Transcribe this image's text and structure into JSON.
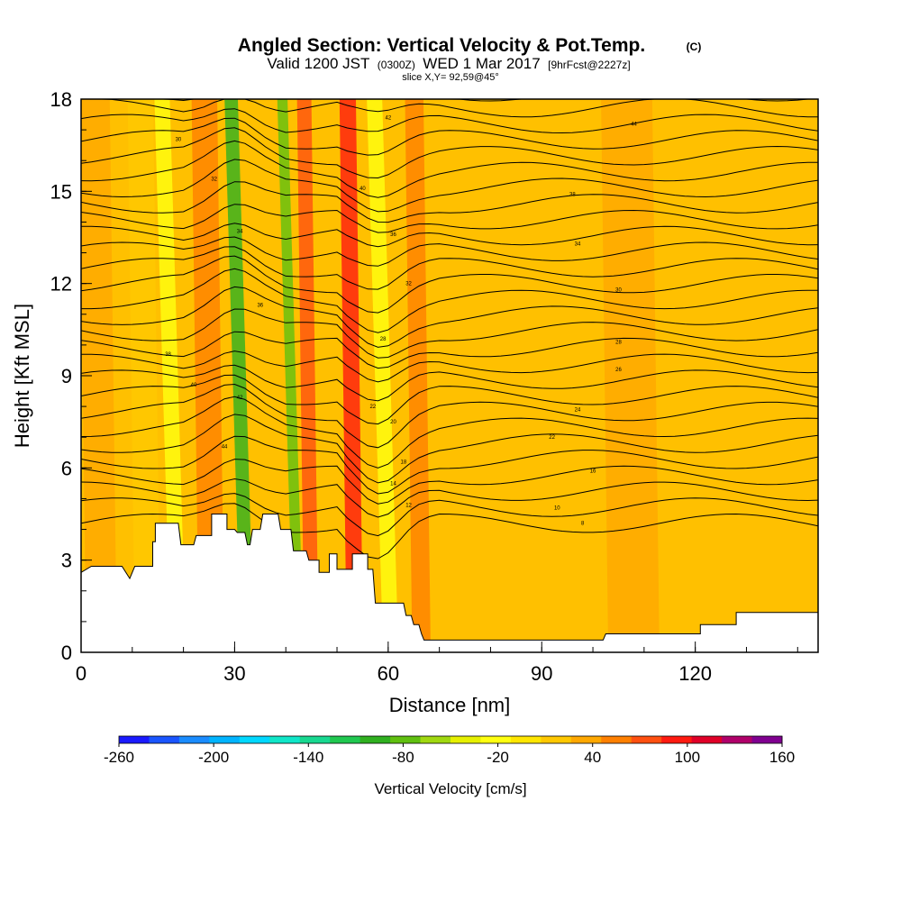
{
  "chart_data": {
    "type": "heatmap",
    "title": "Angled Section: Vertical Velocity & Pot.Temp.",
    "title_suffix": "(C)",
    "subtitle": {
      "valid": "Valid 1200 JST",
      "utc": "(0300Z)",
      "date": "WED 1 Mar 2017",
      "forecast": "[9hrFcst@2227z]"
    },
    "slice_label": "slice X,Y= 92,59@45°",
    "xlabel": "Distance [nm]",
    "ylabel": "Height [Kft MSL]",
    "xlim": [
      0,
      144
    ],
    "ylim": [
      0,
      18
    ],
    "x_ticks": [
      0,
      30,
      60,
      90,
      120
    ],
    "y_ticks": [
      0,
      3,
      6,
      9,
      12,
      15,
      18
    ],
    "colorbar": {
      "label": "Vertical Velocity [cm/s]",
      "ticks": [
        -260,
        -200,
        -140,
        -80,
        -20,
        40,
        100,
        160
      ],
      "bins": [
        -260,
        -240,
        -220,
        -200,
        -180,
        -160,
        -140,
        -120,
        -100,
        -80,
        -60,
        -40,
        -20,
        0,
        20,
        40,
        60,
        80,
        100,
        120,
        140,
        160
      ],
      "colors": [
        "#1a1aff",
        "#1a55ff",
        "#1a8cff",
        "#00b4ff",
        "#00d8ff",
        "#10e6c8",
        "#18d890",
        "#20c850",
        "#30b020",
        "#60c010",
        "#a0d810",
        "#e6f000",
        "#ffff10",
        "#ffe600",
        "#ffc800",
        "#ffa800",
        "#ff8000",
        "#ff5010",
        "#ff1a10",
        "#e00028",
        "#b0006a",
        "#800090"
      ]
    },
    "updraft_bands_nm": [
      {
        "x": 4,
        "w": 3,
        "value": 40
      },
      {
        "x": 13,
        "w": 2.5,
        "value": 20
      },
      {
        "x": 25.5,
        "w": 2.5,
        "value": 60
      },
      {
        "x": 45,
        "w": 1.4,
        "value": 80
      },
      {
        "x": 53.5,
        "w": 1.6,
        "value": 100
      },
      {
        "x": 66.5,
        "w": 1.8,
        "value": 60
      },
      {
        "x": 108,
        "w": 5,
        "value": 40
      }
    ],
    "downdraft_bands_nm": [
      {
        "x": 32.5,
        "w": 1.3,
        "value": -100
      },
      {
        "x": 42.5,
        "w": 1.0,
        "value": -80
      },
      {
        "x": 19,
        "w": 1.5,
        "value": -20
      },
      {
        "x": 60.5,
        "w": 1.5,
        "value": -20
      }
    ],
    "terrain_height_kft": [
      [
        0,
        2.6
      ],
      [
        2,
        2.8
      ],
      [
        8,
        2.8
      ],
      [
        9.5,
        2.4
      ],
      [
        10.5,
        2.8
      ],
      [
        14,
        2.8
      ],
      [
        14,
        3.6
      ],
      [
        14.5,
        3.6
      ],
      [
        14.5,
        4.2
      ],
      [
        19,
        4.2
      ],
      [
        19.5,
        3.5
      ],
      [
        22,
        3.5
      ],
      [
        22.5,
        3.8
      ],
      [
        25.5,
        3.8
      ],
      [
        25.5,
        4.5
      ],
      [
        28.5,
        4.5
      ],
      [
        28.5,
        4.0
      ],
      [
        30,
        4.0
      ],
      [
        30.5,
        3.9
      ],
      [
        32,
        3.9
      ],
      [
        32.5,
        3.5
      ],
      [
        33,
        3.5
      ],
      [
        33.5,
        4.0
      ],
      [
        35,
        4.0
      ],
      [
        35.5,
        4.5
      ],
      [
        38.5,
        4.5
      ],
      [
        39,
        4.0
      ],
      [
        41,
        4.0
      ],
      [
        41.5,
        3.3
      ],
      [
        44,
        3.3
      ],
      [
        44.5,
        3.0
      ],
      [
        46.5,
        3.0
      ],
      [
        46.5,
        2.6
      ],
      [
        48.5,
        2.6
      ],
      [
        48.5,
        3.2
      ],
      [
        50,
        3.2
      ],
      [
        50,
        2.7
      ],
      [
        53,
        2.7
      ],
      [
        53,
        3.2
      ],
      [
        56,
        3.2
      ],
      [
        56,
        2.7
      ],
      [
        57,
        2.7
      ],
      [
        57.5,
        1.6
      ],
      [
        63,
        1.6
      ],
      [
        63.5,
        1.2
      ],
      [
        64.5,
        1.2
      ],
      [
        65,
        0.9
      ],
      [
        66,
        0.9
      ],
      [
        66.5,
        0.6
      ],
      [
        67,
        0.4
      ],
      [
        102,
        0.4
      ],
      [
        102.5,
        0.6
      ],
      [
        121,
        0.6
      ],
      [
        121,
        0.9
      ],
      [
        128,
        0.9
      ],
      [
        128,
        1.3
      ],
      [
        144,
        1.3
      ]
    ],
    "theta_contours": {
      "units": "C",
      "labels": [
        {
          "text": "8",
          "x": 98,
          "y": 4.2
        },
        {
          "text": "10",
          "x": 93,
          "y": 4.7
        },
        {
          "text": "12",
          "x": 64,
          "y": 4.8
        },
        {
          "text": "14",
          "x": 61,
          "y": 5.5
        },
        {
          "text": "16",
          "x": 100,
          "y": 5.9
        },
        {
          "text": "18",
          "x": 63,
          "y": 6.2
        },
        {
          "text": "20",
          "x": 61,
          "y": 7.5
        },
        {
          "text": "22",
          "x": 92,
          "y": 7.0
        },
        {
          "text": "22",
          "x": 57,
          "y": 8.0
        },
        {
          "text": "24",
          "x": 97,
          "y": 7.9
        },
        {
          "text": "26",
          "x": 105,
          "y": 9.2
        },
        {
          "text": "28",
          "x": 105,
          "y": 10.1
        },
        {
          "text": "28",
          "x": 59,
          "y": 10.2
        },
        {
          "text": "30",
          "x": 105,
          "y": 11.8
        },
        {
          "text": "32",
          "x": 64,
          "y": 12.0
        },
        {
          "text": "34",
          "x": 97,
          "y": 13.3
        },
        {
          "text": "36",
          "x": 61,
          "y": 13.6
        },
        {
          "text": "38",
          "x": 96,
          "y": 14.9
        },
        {
          "text": "40",
          "x": 55,
          "y": 15.1
        },
        {
          "text": "42",
          "x": 60,
          "y": 17.4
        },
        {
          "text": "44",
          "x": 108,
          "y": 17.2
        },
        {
          "text": "30",
          "x": 19,
          "y": 16.7
        },
        {
          "text": "32",
          "x": 26,
          "y": 15.4
        },
        {
          "text": "34",
          "x": 31,
          "y": 13.7
        },
        {
          "text": "36",
          "x": 35,
          "y": 11.3
        },
        {
          "text": "38",
          "x": 17,
          "y": 9.7
        },
        {
          "text": "40",
          "x": 22,
          "y": 8.7
        },
        {
          "text": "42",
          "x": 31,
          "y": 8.3
        },
        {
          "text": "44",
          "x": 28,
          "y": 6.7
        }
      ]
    }
  }
}
